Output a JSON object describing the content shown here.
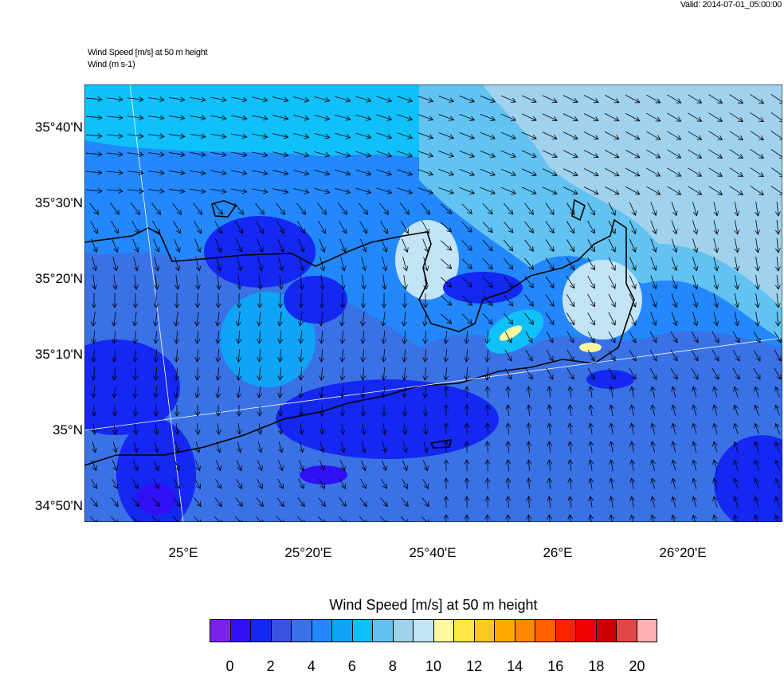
{
  "header": {
    "valid_time": "Valid: 2014-07-01_05:00:00",
    "field_title": "Wind Speed [m/s] at 50 m height",
    "vector_title": "Wind   (m s-1)"
  },
  "chart_data": {
    "type": "heatmap",
    "title": "Wind Speed [m/s] at 50 m height",
    "overlay": "wind vectors",
    "lat_ticks": [
      "35°40'N",
      "35°30'N",
      "35°20'N",
      "35°10'N",
      "35°N",
      "34°50'N"
    ],
    "lon_ticks": [
      "25°E",
      "25°20'E",
      "25°40'E",
      "26°E",
      "26°20'E"
    ],
    "colorbar": {
      "title": "Wind Speed [m/s] at 50 m height",
      "labels": [
        "0",
        "2",
        "4",
        "6",
        "8",
        "10",
        "12",
        "14",
        "16",
        "18",
        "20"
      ],
      "levels_step": 1,
      "colors": [
        "#7a22ea",
        "#3010f6",
        "#1428f2",
        "#3a52e0",
        "#3a72e6",
        "#2288fc",
        "#10a4f6",
        "#10c0fb",
        "#62c2f2",
        "#a0d2ee",
        "#c2e4f6",
        "#fff89c",
        "#ffe644",
        "#ffc822",
        "#ffaa00",
        "#ff8800",
        "#ff6000",
        "#ff2200",
        "#ee0000",
        "#cc0000",
        "#e04848",
        "#ffb0b0"
      ]
    }
  }
}
